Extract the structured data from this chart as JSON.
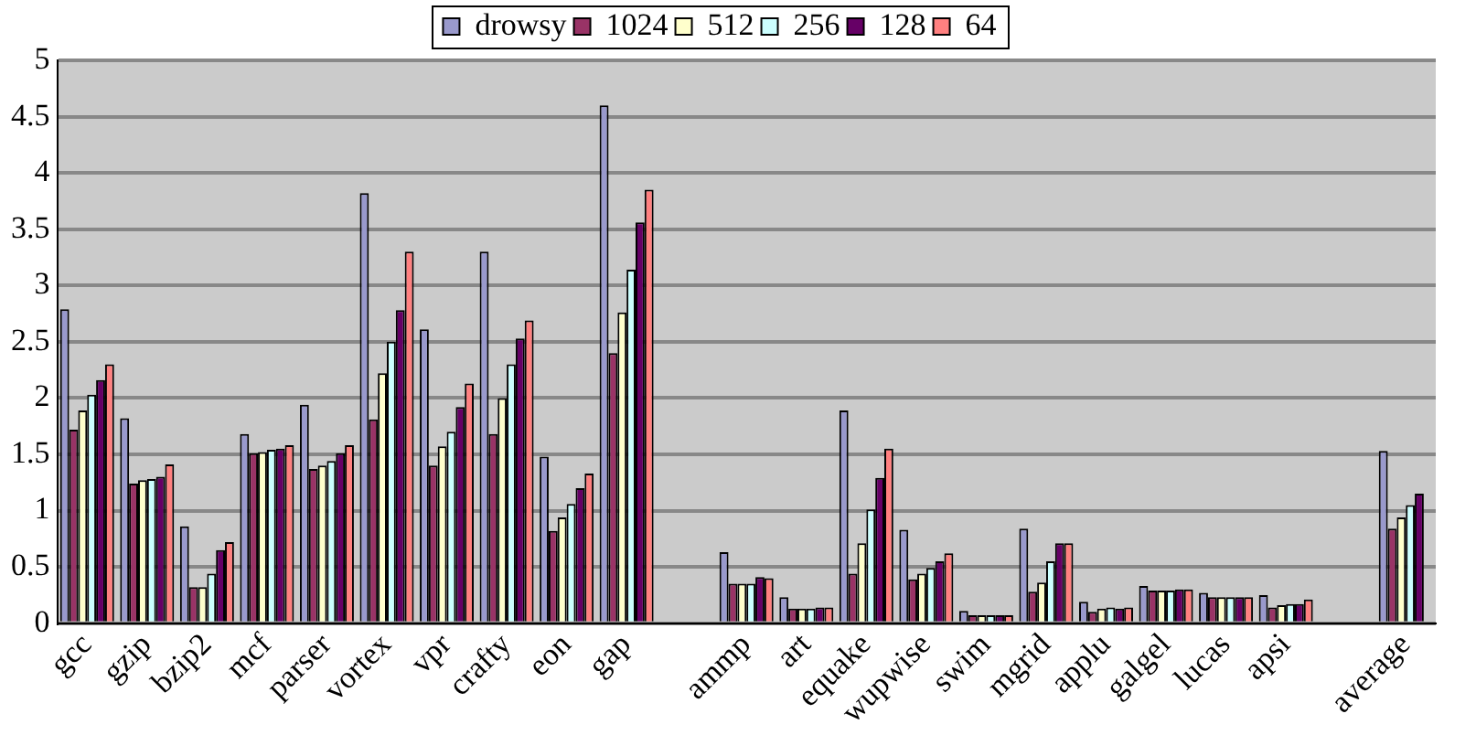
{
  "chart_data": {
    "type": "bar",
    "categories": [
      "gcc",
      "gzip",
      "bzip2",
      "mcf",
      "parser",
      "vortex",
      "vpr",
      "crafty",
      "eon",
      "gap",
      null,
      "ammp",
      "art",
      "equake",
      "wupwise",
      "swim",
      "mgrid",
      "applu",
      "galgel",
      "lucas",
      "apsi",
      null,
      "average"
    ],
    "series": [
      {
        "name": "drowsy",
        "color": "#9999cc",
        "values": [
          2.79,
          1.82,
          0.86,
          1.68,
          1.94,
          3.82,
          2.61,
          3.3,
          1.48,
          4.6,
          null,
          0.63,
          0.23,
          1.89,
          0.83,
          0.11,
          0.84,
          0.19,
          0.33,
          0.27,
          0.25,
          null,
          1.53
        ]
      },
      {
        "name": "1024",
        "color": "#993366",
        "values": [
          1.72,
          1.24,
          0.32,
          1.51,
          1.37,
          1.81,
          1.4,
          1.68,
          0.82,
          2.4,
          null,
          0.35,
          0.13,
          0.44,
          0.39,
          0.07,
          0.28,
          0.1,
          0.29,
          0.23,
          0.14,
          null,
          0.84
        ]
      },
      {
        "name": "512",
        "color": "#ffffcc",
        "values": [
          1.89,
          1.27,
          0.32,
          1.52,
          1.4,
          2.22,
          1.57,
          2.0,
          0.94,
          2.76,
          null,
          0.35,
          0.13,
          0.71,
          0.44,
          0.07,
          0.36,
          0.13,
          0.29,
          0.23,
          0.16,
          null,
          0.94
        ]
      },
      {
        "name": "256",
        "color": "#ccffff",
        "values": [
          2.03,
          1.28,
          0.44,
          1.54,
          1.44,
          2.5,
          1.7,
          2.3,
          1.06,
          3.14,
          null,
          0.35,
          0.13,
          1.01,
          0.49,
          0.07,
          0.55,
          0.14,
          0.29,
          0.23,
          0.17,
          null,
          1.05
        ]
      },
      {
        "name": "128",
        "color": "#660066",
        "values": [
          2.16,
          1.3,
          0.65,
          1.55,
          1.51,
          2.78,
          1.92,
          2.53,
          1.2,
          3.56,
          null,
          0.41,
          0.14,
          1.29,
          0.55,
          0.07,
          0.71,
          0.13,
          0.3,
          0.23,
          0.17,
          null,
          1.15
        ]
      },
      {
        "name": "64",
        "color": "#ff8080",
        "values": [
          2.3,
          1.41,
          0.72,
          1.58,
          1.58,
          3.3,
          2.13,
          2.69,
          1.33,
          3.85,
          null,
          0.4,
          0.14,
          1.55,
          0.62,
          0.07,
          0.71,
          0.14,
          0.3,
          0.23,
          0.21,
          null,
          null
        ]
      }
    ],
    "ylim": [
      0,
      5
    ],
    "yticks": [
      0,
      0.5,
      1,
      1.5,
      2,
      2.5,
      3,
      3.5,
      4,
      4.5,
      5
    ],
    "grid": "y",
    "legend": "top"
  }
}
